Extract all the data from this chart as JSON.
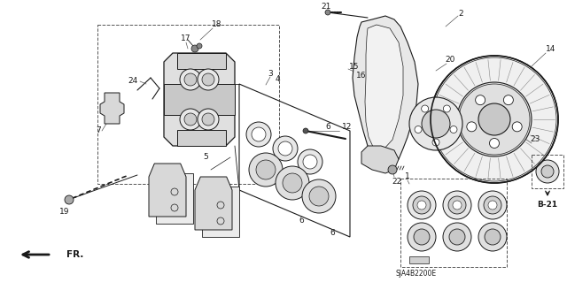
{
  "bg_color": "#ffffff",
  "line_color": "#000000",
  "fig_width": 6.4,
  "fig_height": 3.19,
  "dpi": 100,
  "diagram_code": "SJA4B2200E",
  "ref_label": "B-21",
  "arrow_label": "FR."
}
